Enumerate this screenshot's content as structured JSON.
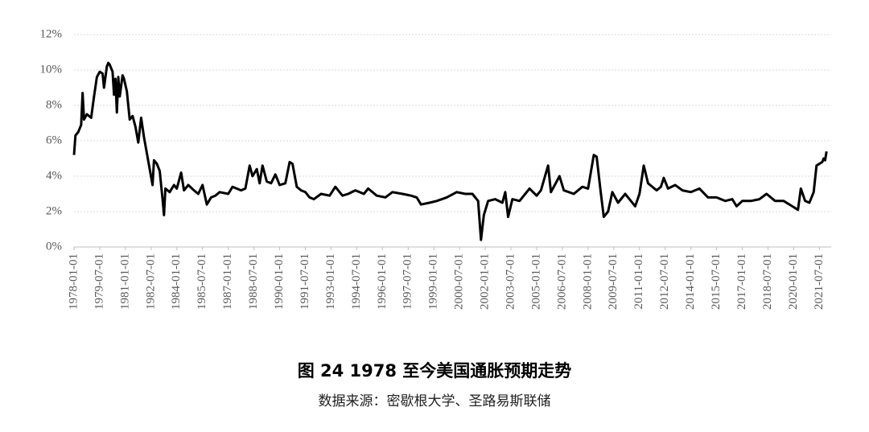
{
  "chart_data": {
    "type": "line",
    "title": "图 24 1978 至今美国通胀预期走势",
    "source": "数据来源：密歇根大学、圣路易斯联储",
    "x": [
      "1978-01-01",
      "1978-02-01",
      "1978-04-01",
      "1978-06-01",
      "1978-07-01",
      "1978-08-01",
      "1978-10-01",
      "1979-01-01",
      "1979-03-01",
      "1979-05-01",
      "1979-07-01",
      "1979-09-01",
      "1979-10-01",
      "1979-12-01",
      "1980-01-01",
      "1980-02-01",
      "1980-04-01",
      "1980-05-01",
      "1980-06-01",
      "1980-07-01",
      "1980-08-01",
      "1980-09-01",
      "1980-11-01",
      "1980-12-01",
      "1981-02-01",
      "1981-04-01",
      "1981-06-01",
      "1981-08-01",
      "1981-10-01",
      "1981-12-01",
      "1982-02-01",
      "1982-04-01",
      "1982-06-01",
      "1982-08-01",
      "1982-09-01",
      "1982-11-01",
      "1983-01-01",
      "1983-03-01",
      "1983-04-01",
      "1983-05-01",
      "1983-08-01",
      "1983-11-01",
      "1984-01-01",
      "1984-04-01",
      "1984-06-01",
      "1984-09-01",
      "1985-01-01",
      "1985-04-01",
      "1985-07-01",
      "1985-10-01",
      "1986-01-01",
      "1986-04-01",
      "1986-07-01",
      "1987-01-01",
      "1987-04-01",
      "1987-10-01",
      "1988-01-01",
      "1988-04-01",
      "1988-06-01",
      "1988-09-01",
      "1988-11-01",
      "1989-01-01",
      "1989-04-01",
      "1989-07-01",
      "1989-10-01",
      "1990-01-01",
      "1990-05-01",
      "1990-08-01",
      "1990-10-01",
      "1991-01-01",
      "1991-04-01",
      "1991-07-01",
      "1991-10-01",
      "1992-01-01",
      "1992-06-01",
      "1992-12-01",
      "1993-04-01",
      "1993-09-01",
      "1994-01-01",
      "1994-06-01",
      "1994-12-01",
      "1995-03-01",
      "1995-09-01",
      "1996-03-01",
      "1996-08-01",
      "1997-03-01",
      "1997-09-01",
      "1998-01-01",
      "1998-04-01",
      "1998-10-01",
      "1999-03-01",
      "1999-10-01",
      "2000-05-01",
      "2000-11-01",
      "2001-04-01",
      "2001-08-01",
      "2001-10-01",
      "2001-12-01",
      "2002-03-01",
      "2002-08-01",
      "2003-01-01",
      "2003-03-01",
      "2003-05-01",
      "2003-08-01",
      "2004-01-01",
      "2004-05-01",
      "2004-08-01",
      "2005-01-01",
      "2005-04-01",
      "2005-09-01",
      "2005-11-01",
      "2006-05-01",
      "2006-08-01",
      "2007-03-01",
      "2007-09-01",
      "2008-01-01",
      "2008-05-01",
      "2008-07-01",
      "2008-10-01",
      "2008-12-01",
      "2009-03-01",
      "2009-06-01",
      "2009-10-01",
      "2010-03-01",
      "2010-07-01",
      "2010-10-01",
      "2011-01-01",
      "2011-04-01",
      "2011-07-01",
      "2012-01-01",
      "2012-04-01",
      "2012-06-01",
      "2012-09-01",
      "2013-02-01",
      "2013-07-01",
      "2014-01-01",
      "2014-07-01",
      "2015-01-01",
      "2015-07-01",
      "2016-01-01",
      "2016-06-01",
      "2016-09-01",
      "2017-01-01",
      "2017-07-01",
      "2018-01-01",
      "2018-06-01",
      "2018-12-01",
      "2019-06-01",
      "2019-12-01",
      "2020-04-01",
      "2020-06-01",
      "2020-09-01",
      "2020-12-01",
      "2021-03-01",
      "2021-05-01",
      "2021-07-01",
      "2021-09-01",
      "2021-10-01",
      "2021-11-01",
      "2021-12-01"
    ],
    "series": [
      {
        "color": "#000000",
        "values": [
          5.2,
          6.3,
          6.5,
          6.9,
          8.7,
          7.2,
          7.5,
          7.3,
          8.5,
          9.6,
          9.9,
          9.8,
          9.0,
          10.2,
          10.4,
          10.3,
          9.9,
          8.6,
          9.5,
          7.6,
          9.6,
          8.5,
          9.7,
          9.5,
          8.8,
          7.2,
          7.4,
          6.8,
          5.9,
          7.3,
          6.2,
          5.3,
          4.4,
          3.5,
          4.9,
          4.7,
          4.3,
          2.7,
          1.8,
          3.3,
          3.1,
          3.5,
          3.3,
          4.2,
          3.2,
          3.5,
          3.2,
          3.0,
          3.5,
          2.4,
          2.8,
          2.9,
          3.1,
          3.0,
          3.4,
          3.2,
          3.3,
          4.6,
          4.0,
          4.4,
          3.6,
          4.6,
          3.7,
          3.6,
          4.1,
          3.5,
          3.6,
          4.8,
          4.7,
          3.4,
          3.2,
          3.1,
          2.8,
          2.7,
          3.0,
          2.9,
          3.4,
          2.9,
          3.0,
          3.2,
          3.0,
          3.3,
          2.9,
          2.8,
          3.1,
          3.0,
          2.9,
          2.8,
          2.4,
          2.5,
          2.6,
          2.8,
          3.1,
          3.0,
          3.0,
          2.6,
          0.4,
          1.8,
          2.6,
          2.7,
          2.5,
          3.1,
          1.7,
          2.7,
          2.6,
          3.0,
          3.3,
          2.9,
          3.2,
          4.6,
          3.1,
          4.0,
          3.2,
          3.0,
          3.4,
          3.3,
          5.2,
          5.1,
          3.0,
          1.7,
          2.0,
          3.1,
          2.5,
          3.0,
          2.6,
          2.3,
          3.0,
          4.6,
          3.6,
          3.2,
          3.4,
          3.9,
          3.3,
          3.5,
          3.2,
          3.1,
          3.3,
          2.8,
          2.8,
          2.6,
          2.7,
          2.3,
          2.6,
          2.6,
          2.7,
          3.0,
          2.6,
          2.6,
          2.3,
          2.1,
          3.3,
          2.6,
          2.5,
          3.1,
          4.6,
          4.7,
          4.8,
          5.0,
          4.9,
          5.4
        ]
      }
    ],
    "xlim": [
      "1978-01-01",
      "2022-01-01"
    ],
    "xticks": [
      "1978-01-01",
      "1979-07-01",
      "1981-01-01",
      "1982-07-01",
      "1984-01-01",
      "1985-07-01",
      "1987-01-01",
      "1988-07-01",
      "1990-01-01",
      "1991-07-01",
      "1993-01-01",
      "1994-07-01",
      "1996-01-01",
      "1997-07-01",
      "1999-01-01",
      "2000-07-01",
      "2002-01-01",
      "2003-07-01",
      "2005-01-01",
      "2006-07-01",
      "2008-01-01",
      "2009-07-01",
      "2011-01-01",
      "2012-07-01",
      "2014-01-01",
      "2015-07-01",
      "2017-01-01",
      "2018-07-01",
      "2020-01-01",
      "2021-07-01"
    ],
    "ylim": [
      0,
      12
    ],
    "yticks": [
      {
        "value": 0,
        "label": "0%"
      },
      {
        "value": 2,
        "label": "2%"
      },
      {
        "value": 4,
        "label": "4%"
      },
      {
        "value": 6,
        "label": "6%"
      },
      {
        "value": 8,
        "label": "8%"
      },
      {
        "value": 10,
        "label": "10%"
      },
      {
        "value": 12,
        "label": "12%"
      }
    ],
    "grid": true
  }
}
